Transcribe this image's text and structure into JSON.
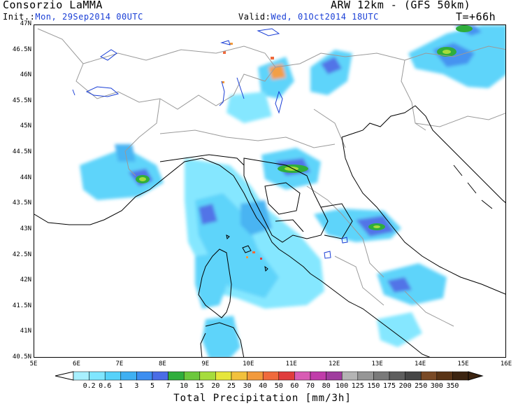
{
  "header": {
    "org": "Consorzio LaMMA",
    "init_label": "Init.:",
    "init_value": "Mon, 29Sep2014 00UTC",
    "model": "ARW 12km - (GFS 50km)",
    "valid_label": "Valid:",
    "valid_value": "Wed, 01Oct2014 18UTC",
    "lead": "T=+66h"
  },
  "axes": {
    "lat_labels": [
      "47N",
      "46.5N",
      "46N",
      "45.5N",
      "45N",
      "44.5N",
      "44N",
      "43.5N",
      "43N",
      "42.5N",
      "42N",
      "41.5N",
      "41N",
      "40.5N"
    ],
    "lon_labels": [
      "5E",
      "6E",
      "7E",
      "8E",
      "9E",
      "10E",
      "11E",
      "12E",
      "13E",
      "14E",
      "15E",
      "16E"
    ],
    "lat_range": [
      40.5,
      47
    ],
    "lon_range": [
      5,
      16
    ]
  },
  "colorbar": {
    "title": "Total Precipitation [mm/3h]",
    "labels": [
      "0.2",
      "0.6",
      "1",
      "3",
      "5",
      "7",
      "10",
      "15",
      "20",
      "25",
      "30",
      "40",
      "50",
      "60",
      "70",
      "80",
      "100",
      "125",
      "150",
      "175",
      "200",
      "250",
      "300",
      "350"
    ],
    "colors": [
      "#a8f0ff",
      "#7fe6ff",
      "#56d2fa",
      "#3fb0f2",
      "#3c8ef0",
      "#4a6de6",
      "#2fae3c",
      "#6cc83c",
      "#a6dc3c",
      "#e6e63c",
      "#f2c13c",
      "#f29a3c",
      "#f06a3c",
      "#e03c3c",
      "#d85cb4",
      "#c03caa",
      "#a03c9e",
      "#b4b4b4",
      "#969696",
      "#7a7a7a",
      "#5e5e5e",
      "#464646",
      "#7a4a26",
      "#5a3416",
      "#3c2410"
    ]
  },
  "map_colors": {
    "coast": "#000000",
    "borders": "#9a9a9a",
    "lakes": "#1a3fd6"
  }
}
